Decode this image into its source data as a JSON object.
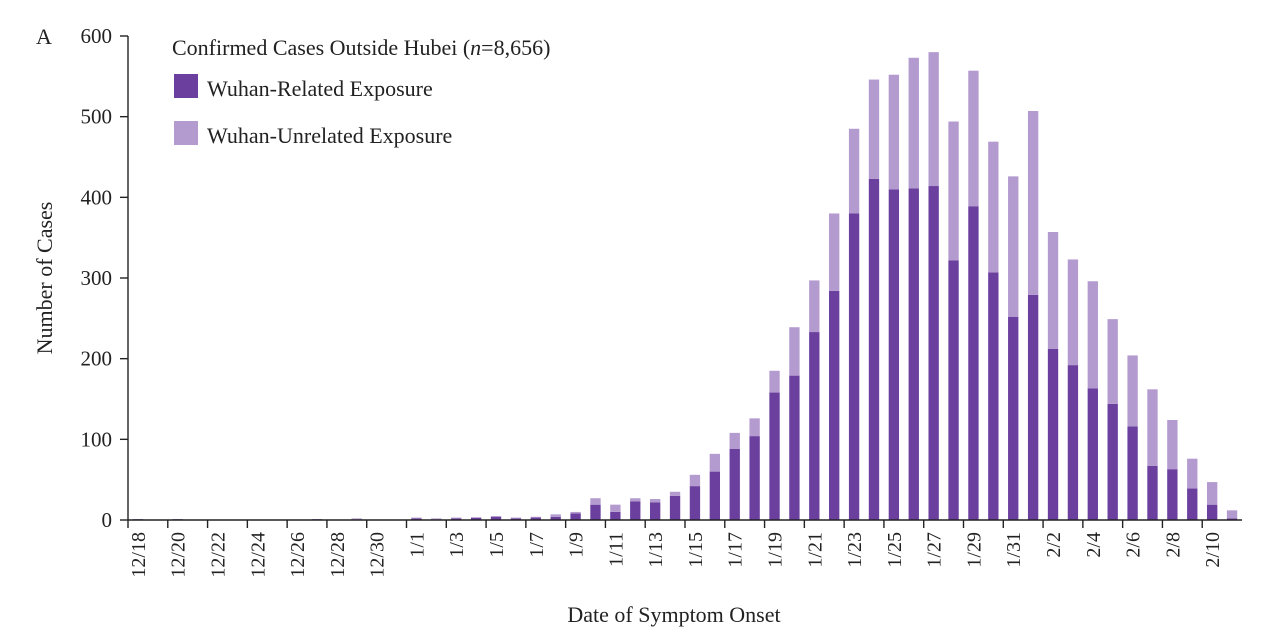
{
  "chart_data": {
    "type": "bar",
    "stacked": true,
    "panel_label": "A",
    "title": {
      "prefix": "Confirmed Cases Outside Hubei (",
      "n_italic": "n",
      "suffix": "=8,656)"
    },
    "xlabel": "Date of Symptom Onset",
    "ylabel": "Number of Cases",
    "ylim": [
      0,
      600
    ],
    "yticks": [
      0,
      100,
      200,
      300,
      400,
      500,
      600
    ],
    "grid": false,
    "legend_position": "top-left",
    "tick_labels": [
      "12/18",
      "12/20",
      "12/22",
      "12/24",
      "12/26",
      "12/28",
      "12/30",
      "1/1",
      "1/3",
      "1/5",
      "1/7",
      "1/9",
      "1/11",
      "1/13",
      "1/15",
      "1/17",
      "1/19",
      "1/21",
      "1/23",
      "1/25",
      "1/27",
      "1/29",
      "1/31",
      "2/2",
      "2/4",
      "2/6",
      "2/8",
      "2/10"
    ],
    "categories": [
      "12/18",
      "12/19",
      "12/20",
      "12/21",
      "12/22",
      "12/23",
      "12/24",
      "12/25",
      "12/26",
      "12/27",
      "12/28",
      "12/29",
      "12/30",
      "12/31",
      "1/1",
      "1/2",
      "1/3",
      "1/4",
      "1/5",
      "1/6",
      "1/7",
      "1/8",
      "1/9",
      "1/10",
      "1/11",
      "1/12",
      "1/13",
      "1/14",
      "1/15",
      "1/16",
      "1/17",
      "1/18",
      "1/19",
      "1/20",
      "1/21",
      "1/22",
      "1/23",
      "1/24",
      "1/25",
      "1/26",
      "1/27",
      "1/28",
      "1/29",
      "1/30",
      "1/31",
      "2/1",
      "2/2",
      "2/3",
      "2/4",
      "2/5",
      "2/6",
      "2/7",
      "2/8",
      "2/9",
      "2/10",
      "2/11"
    ],
    "series": [
      {
        "name": "Wuhan-Related Exposure",
        "color": "#6b3f9e",
        "values": [
          1,
          0,
          1,
          0,
          0,
          0,
          0,
          0,
          0,
          1,
          0,
          1,
          0,
          0,
          2,
          1,
          2,
          3,
          4,
          2,
          3,
          4,
          8,
          19,
          10,
          23,
          22,
          30,
          42,
          60,
          88,
          104,
          158,
          179,
          233,
          284,
          380,
          423,
          410,
          411,
          414,
          322,
          389,
          307,
          252,
          279,
          212,
          192,
          163,
          144,
          116,
          67,
          63,
          39,
          19,
          2
        ]
      },
      {
        "name": "Wuhan-Unrelated Exposure",
        "color": "#b49bcf",
        "values": [
          0,
          0,
          0,
          0,
          0,
          0,
          0,
          0,
          0,
          0,
          0,
          1,
          0,
          0,
          1,
          1,
          1,
          0,
          1,
          1,
          1,
          3,
          2,
          8,
          9,
          4,
          4,
          5,
          14,
          22,
          20,
          22,
          27,
          60,
          64,
          96,
          105,
          123,
          142,
          162,
          166,
          172,
          168,
          162,
          174,
          228,
          145,
          131,
          133,
          105,
          88,
          95,
          61,
          37,
          28,
          10
        ]
      }
    ]
  }
}
